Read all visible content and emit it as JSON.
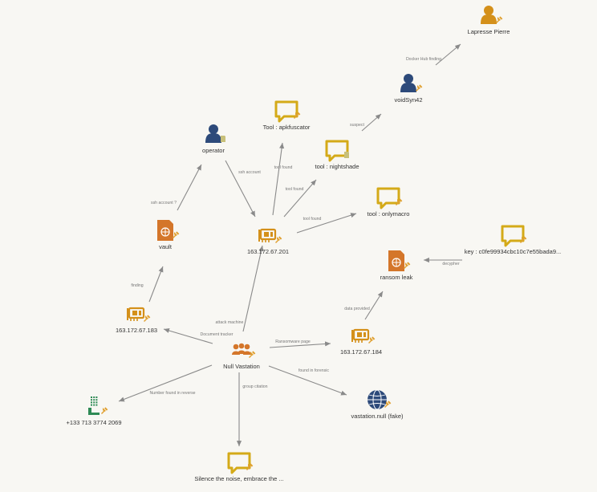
{
  "graph": {
    "colors": {
      "person": "#2d4a7a",
      "person_alt": "#d4901a",
      "message": "#d4aa18",
      "ip": "#d4901a",
      "document": "#d4762a",
      "group": "#d4762a",
      "phone": "#2e8a55",
      "network": "#2d4a7a",
      "pin": "#e0a030",
      "note": "#c8c07a",
      "edge": "#8a8a8a"
    },
    "nodes": [
      {
        "id": "lapresse",
        "label": "Lapresse Pierre",
        "icon": "person-icon",
        "color": "person_alt",
        "badge": "pin-icon"
      },
      {
        "id": "voidsyn",
        "label": "voidSyn42",
        "icon": "person-icon",
        "color": "person",
        "badge": "pin-icon"
      },
      {
        "id": "apkfuscator",
        "label": "Tool : apkfuscator",
        "icon": "message-icon",
        "color": "message",
        "badge": "pin-icon"
      },
      {
        "id": "operator",
        "label": "operator",
        "icon": "person-icon",
        "color": "person",
        "badge": "note-icon"
      },
      {
        "id": "nightshade",
        "label": "tool : nightshade",
        "icon": "message-icon",
        "color": "message",
        "badge": "note-icon"
      },
      {
        "id": "onlymacro",
        "label": "tool : onlymacro",
        "icon": "message-icon",
        "color": "message",
        "badge": "pin-icon"
      },
      {
        "id": "vault",
        "label": "vault",
        "icon": "document-icon",
        "color": "document",
        "badge": "pin-icon"
      },
      {
        "id": "ip201",
        "label": "163.172.67.201",
        "icon": "ip-card-icon",
        "color": "ip",
        "badge": "pin-icon"
      },
      {
        "id": "key",
        "label": "key : c0fe99934cbc10c7e55bada9...",
        "icon": "message-icon",
        "color": "message",
        "badge": "pin-icon"
      },
      {
        "id": "ransom",
        "label": "ransom leak",
        "icon": "document-icon",
        "color": "document",
        "badge": "pin-icon"
      },
      {
        "id": "ip183",
        "label": "163.172.67.183",
        "icon": "ip-card-icon",
        "color": "ip",
        "badge": "pin-icon"
      },
      {
        "id": "ip184",
        "label": "163.172.67.184",
        "icon": "ip-card-icon",
        "color": "ip",
        "badge": "pin-icon"
      },
      {
        "id": "nullvast",
        "label": "Null Vastation",
        "icon": "group-icon",
        "color": "group",
        "badge": "pin-icon"
      },
      {
        "id": "phone",
        "label": "+133 713 3774 2069",
        "icon": "phone-icon",
        "color": "phone",
        "badge": "pin-icon"
      },
      {
        "id": "vastnull",
        "label": "vastation.null (fake)",
        "icon": "network-icon",
        "color": "network",
        "badge": "pin-icon"
      },
      {
        "id": "silence",
        "label": "Silence the noise, embrace the ...",
        "icon": "message-icon",
        "color": "message",
        "badge": "pin-icon"
      }
    ],
    "edges": [
      {
        "from": "voidsyn",
        "to": "lapresse",
        "label": "Docker Hub finding"
      },
      {
        "from": "nightshade",
        "to": "voidsyn",
        "label": "suspect"
      },
      {
        "from": "vault",
        "to": "operator",
        "label": "ssh account ?"
      },
      {
        "from": "operator",
        "to": "ip201",
        "label": "ssh account"
      },
      {
        "from": "ip201",
        "to": "apkfuscator",
        "label": "tool found"
      },
      {
        "from": "ip201",
        "to": "nightshade",
        "label": "tool found"
      },
      {
        "from": "ip201",
        "to": "onlymacro",
        "label": "tool found"
      },
      {
        "from": "key",
        "to": "ransom",
        "label": "decypher"
      },
      {
        "from": "ip183",
        "to": "vault",
        "label": "finding"
      },
      {
        "from": "nullvast",
        "to": "ip201",
        "label": "attack machine"
      },
      {
        "from": "nullvast",
        "to": "ip183",
        "label": "Document tracker"
      },
      {
        "from": "nullvast",
        "to": "ip184",
        "label": "Ransomware page"
      },
      {
        "from": "ip184",
        "to": "ransom",
        "label": "data provided"
      },
      {
        "from": "nullvast",
        "to": "phone",
        "label": "Number found in reverse"
      },
      {
        "from": "nullvast",
        "to": "vastnull",
        "label": "found in forensic"
      },
      {
        "from": "nullvast",
        "to": "silence",
        "label": "group citation"
      }
    ]
  }
}
